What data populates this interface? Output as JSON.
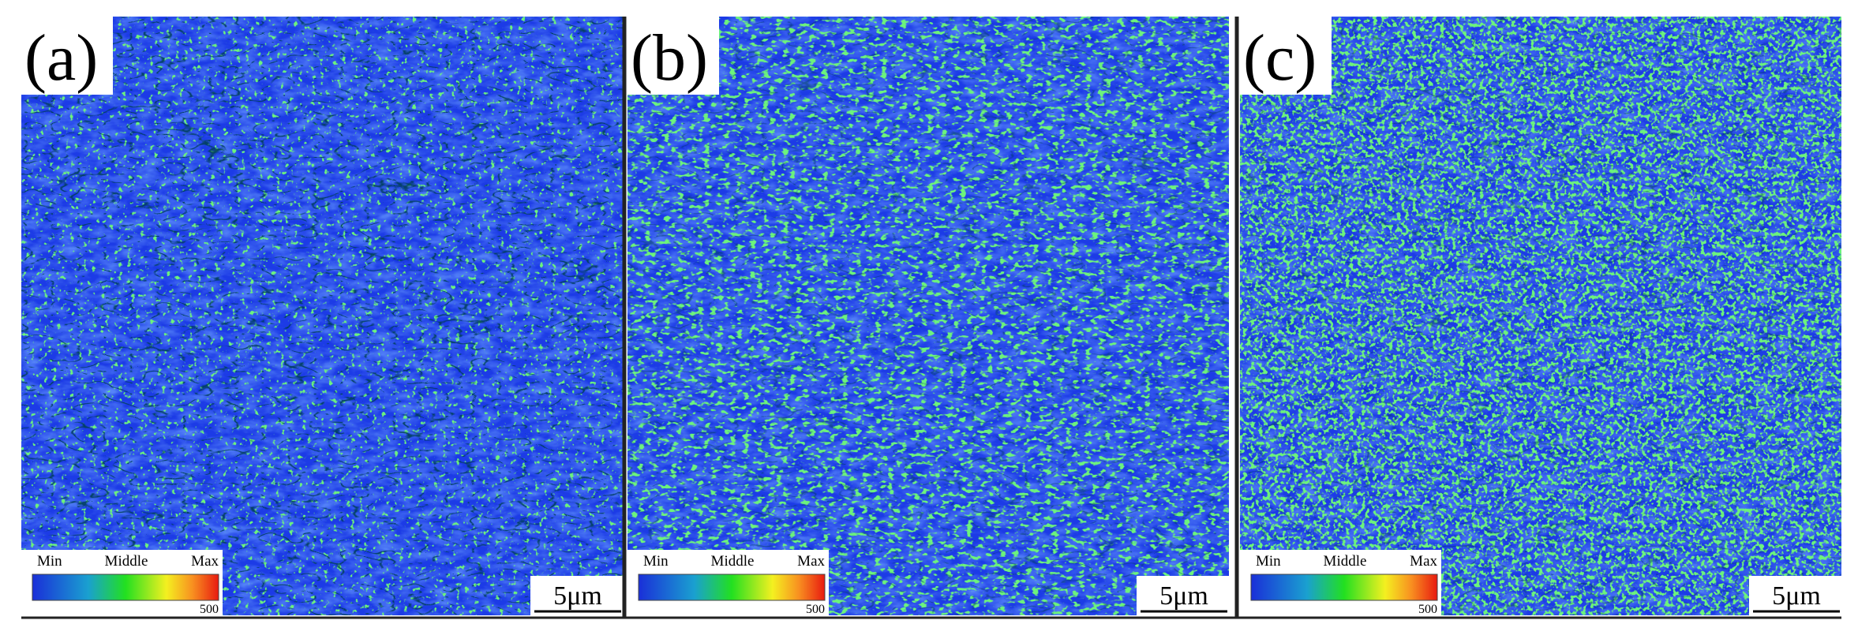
{
  "panels": [
    {
      "label": "(a)",
      "legend": {
        "min": "Min",
        "middle": "Middle",
        "max": "Max",
        "value": "500"
      },
      "scale_bar": "5μm"
    },
    {
      "label": "(b)",
      "legend": {
        "min": "Min",
        "middle": "Middle",
        "max": "Max",
        "value": "500"
      },
      "scale_bar": "5μm"
    },
    {
      "label": "(c)",
      "legend": {
        "min": "Min",
        "middle": "Middle",
        "max": "Max",
        "value": "500"
      },
      "scale_bar": "5μm"
    }
  ]
}
